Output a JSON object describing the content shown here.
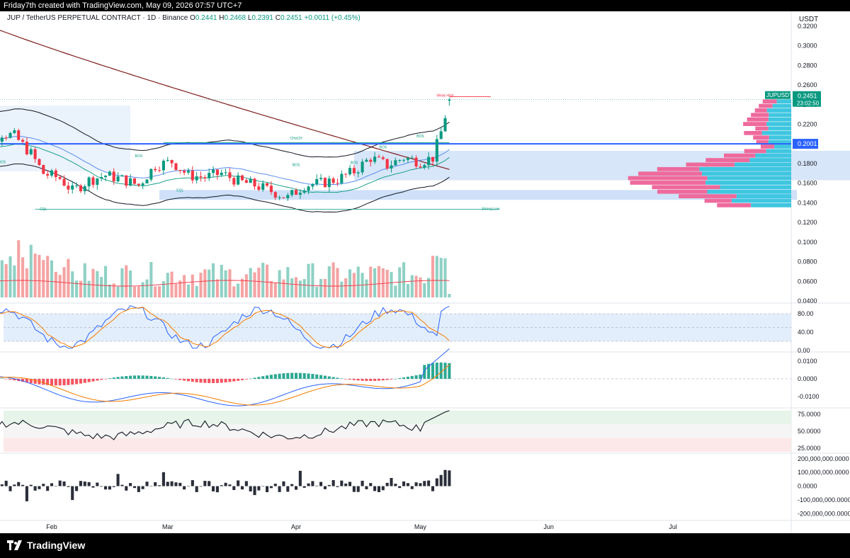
{
  "header": {
    "credit": "Friday7th created with TradingView.com, May 09, 2026 07:57 UTC+7"
  },
  "legend": {
    "symbol": "JUP / TetherUS PERPETUAL CONTRACT · 1D · Binance",
    "open_label": "O",
    "open": "0.2441",
    "high_label": "H",
    "high": "0.2468",
    "low_label": "L",
    "low": "0.2391",
    "close_label": "C",
    "close": "0.2451",
    "change": "+0.0011 (+0.45%)"
  },
  "currency": "USDT",
  "colors": {
    "up": "#089981",
    "down": "#f23645",
    "up_volume": "#8fd1c4",
    "down_volume": "#f5a3a3",
    "ma_long": "#7f1d1d",
    "bb_band": "#131722",
    "zone": "#c6dcf7",
    "key_level": "#2962ff",
    "vp_up": "#3fc6e0",
    "vp_down": "#ee6a9c",
    "stoch_k": "#2962ff",
    "stoch_d": "#f57c00",
    "rsi": "#131722"
  },
  "price_badge": {
    "ticker": "JUPUSDT.P",
    "price": "0.2451",
    "countdown": "23:02:50"
  },
  "key_level_label": "0.2001",
  "annotations": [
    {
      "text": "Weak High",
      "x": "2026-05-07",
      "y": 0.2482
    },
    {
      "text": "CHoCH",
      "x": "2026-04-01",
      "y": 0.2045
    },
    {
      "text": "Strong Low",
      "x": "2026-05-18",
      "y": 0.1328
    },
    {
      "text": "EQL",
      "x": "2026-03-04",
      "y": 0.1515
    },
    {
      "text": "EQL",
      "x": "2026-01-30",
      "y": 0.1325
    },
    {
      "text": "BOS",
      "x": "2026-01-20",
      "y": 0.1805
    },
    {
      "text": "BOS",
      "x": "2026-04-01",
      "y": 0.1775
    },
    {
      "text": "BOS",
      "x": "2026-04-15",
      "y": 0.1795
    },
    {
      "text": "BOS",
      "x": "2026-04-22",
      "y": 0.1955
    },
    {
      "text": "BOS",
      "x": "2026-05-01",
      "y": 0.2065
    },
    {
      "text": "BOS",
      "x": "2026-02-22",
      "y": 0.1865
    }
  ],
  "chart_data": [
    {
      "type": "candlestick",
      "title": "JUP / TetherUS PERPETUAL CONTRACT · 1D · Binance",
      "x_ticks": [
        "Feb",
        "Mar",
        "Apr",
        "May",
        "Jun",
        "Jul"
      ],
      "y_ticks": [
        "0.3200",
        "0.3000",
        "0.2800",
        "0.2600",
        "0.2400",
        "0.2200",
        "0.2000",
        "0.1800",
        "0.1600",
        "0.1400",
        "0.1200",
        "0.1000",
        "0.0800",
        "0.0600",
        "0.0400"
      ],
      "ylim": [
        0.04,
        0.325
      ],
      "close_series": [
        {
          "date": "2026-01-12",
          "close": 0.205
        },
        {
          "date": "2026-01-16",
          "close": 0.198
        },
        {
          "date": "2026-01-20",
          "close": 0.211
        },
        {
          "date": "2026-01-23",
          "close": 0.208
        },
        {
          "date": "2026-01-27",
          "close": 0.19
        },
        {
          "date": "2026-01-30",
          "close": 0.17
        },
        {
          "date": "2026-02-03",
          "close": 0.165
        },
        {
          "date": "2026-02-06",
          "close": 0.152
        },
        {
          "date": "2026-02-10",
          "close": 0.163
        },
        {
          "date": "2026-02-14",
          "close": 0.168
        },
        {
          "date": "2026-02-18",
          "close": 0.164
        },
        {
          "date": "2026-02-22",
          "close": 0.158
        },
        {
          "date": "2026-02-26",
          "close": 0.178
        },
        {
          "date": "2026-03-02",
          "close": 0.182
        },
        {
          "date": "2026-03-06",
          "close": 0.168
        },
        {
          "date": "2026-03-10",
          "close": 0.166
        },
        {
          "date": "2026-03-14",
          "close": 0.17
        },
        {
          "date": "2026-03-18",
          "close": 0.162
        },
        {
          "date": "2026-03-22",
          "close": 0.158
        },
        {
          "date": "2026-03-26",
          "close": 0.152
        },
        {
          "date": "2026-03-30",
          "close": 0.145
        },
        {
          "date": "2026-04-03",
          "close": 0.158
        },
        {
          "date": "2026-04-07",
          "close": 0.16
        },
        {
          "date": "2026-04-11",
          "close": 0.164
        },
        {
          "date": "2026-04-15",
          "close": 0.172
        },
        {
          "date": "2026-04-19",
          "close": 0.186
        },
        {
          "date": "2026-04-23",
          "close": 0.178
        },
        {
          "date": "2026-04-27",
          "close": 0.186
        },
        {
          "date": "2026-05-01",
          "close": 0.182
        },
        {
          "date": "2026-05-04",
          "close": 0.186
        },
        {
          "date": "2026-05-06",
          "close": 0.212
        },
        {
          "date": "2026-05-08",
          "close": 0.2451
        }
      ]
    },
    {
      "type": "bar",
      "title": "Volume",
      "y_ticks": [
        "0.1000",
        "0.0800",
        "0.0600",
        "0.0400"
      ]
    },
    {
      "type": "line",
      "title": "Stochastic RSI",
      "y_ticks": [
        "80.00",
        "40.00",
        "0.00"
      ],
      "ylim": [
        0,
        100
      ]
    },
    {
      "type": "line",
      "title": "MACD",
      "y_ticks": [
        "0.0100",
        "0.0000",
        "-0.0100"
      ],
      "ylim": [
        -0.016,
        0.014
      ]
    },
    {
      "type": "line",
      "title": "RSI",
      "y_ticks": [
        "75.0000",
        "50.0000",
        "25.0000"
      ],
      "ylim": [
        20,
        82
      ]
    },
    {
      "type": "bar",
      "title": "Net flow",
      "y_ticks": [
        "200,000,000.0000",
        "100,000,000.0000",
        "0.0000",
        "-100,000,000.0000",
        "-200,000,000.0000"
      ],
      "ylim": [
        -240000000,
        230000000
      ]
    }
  ]
}
